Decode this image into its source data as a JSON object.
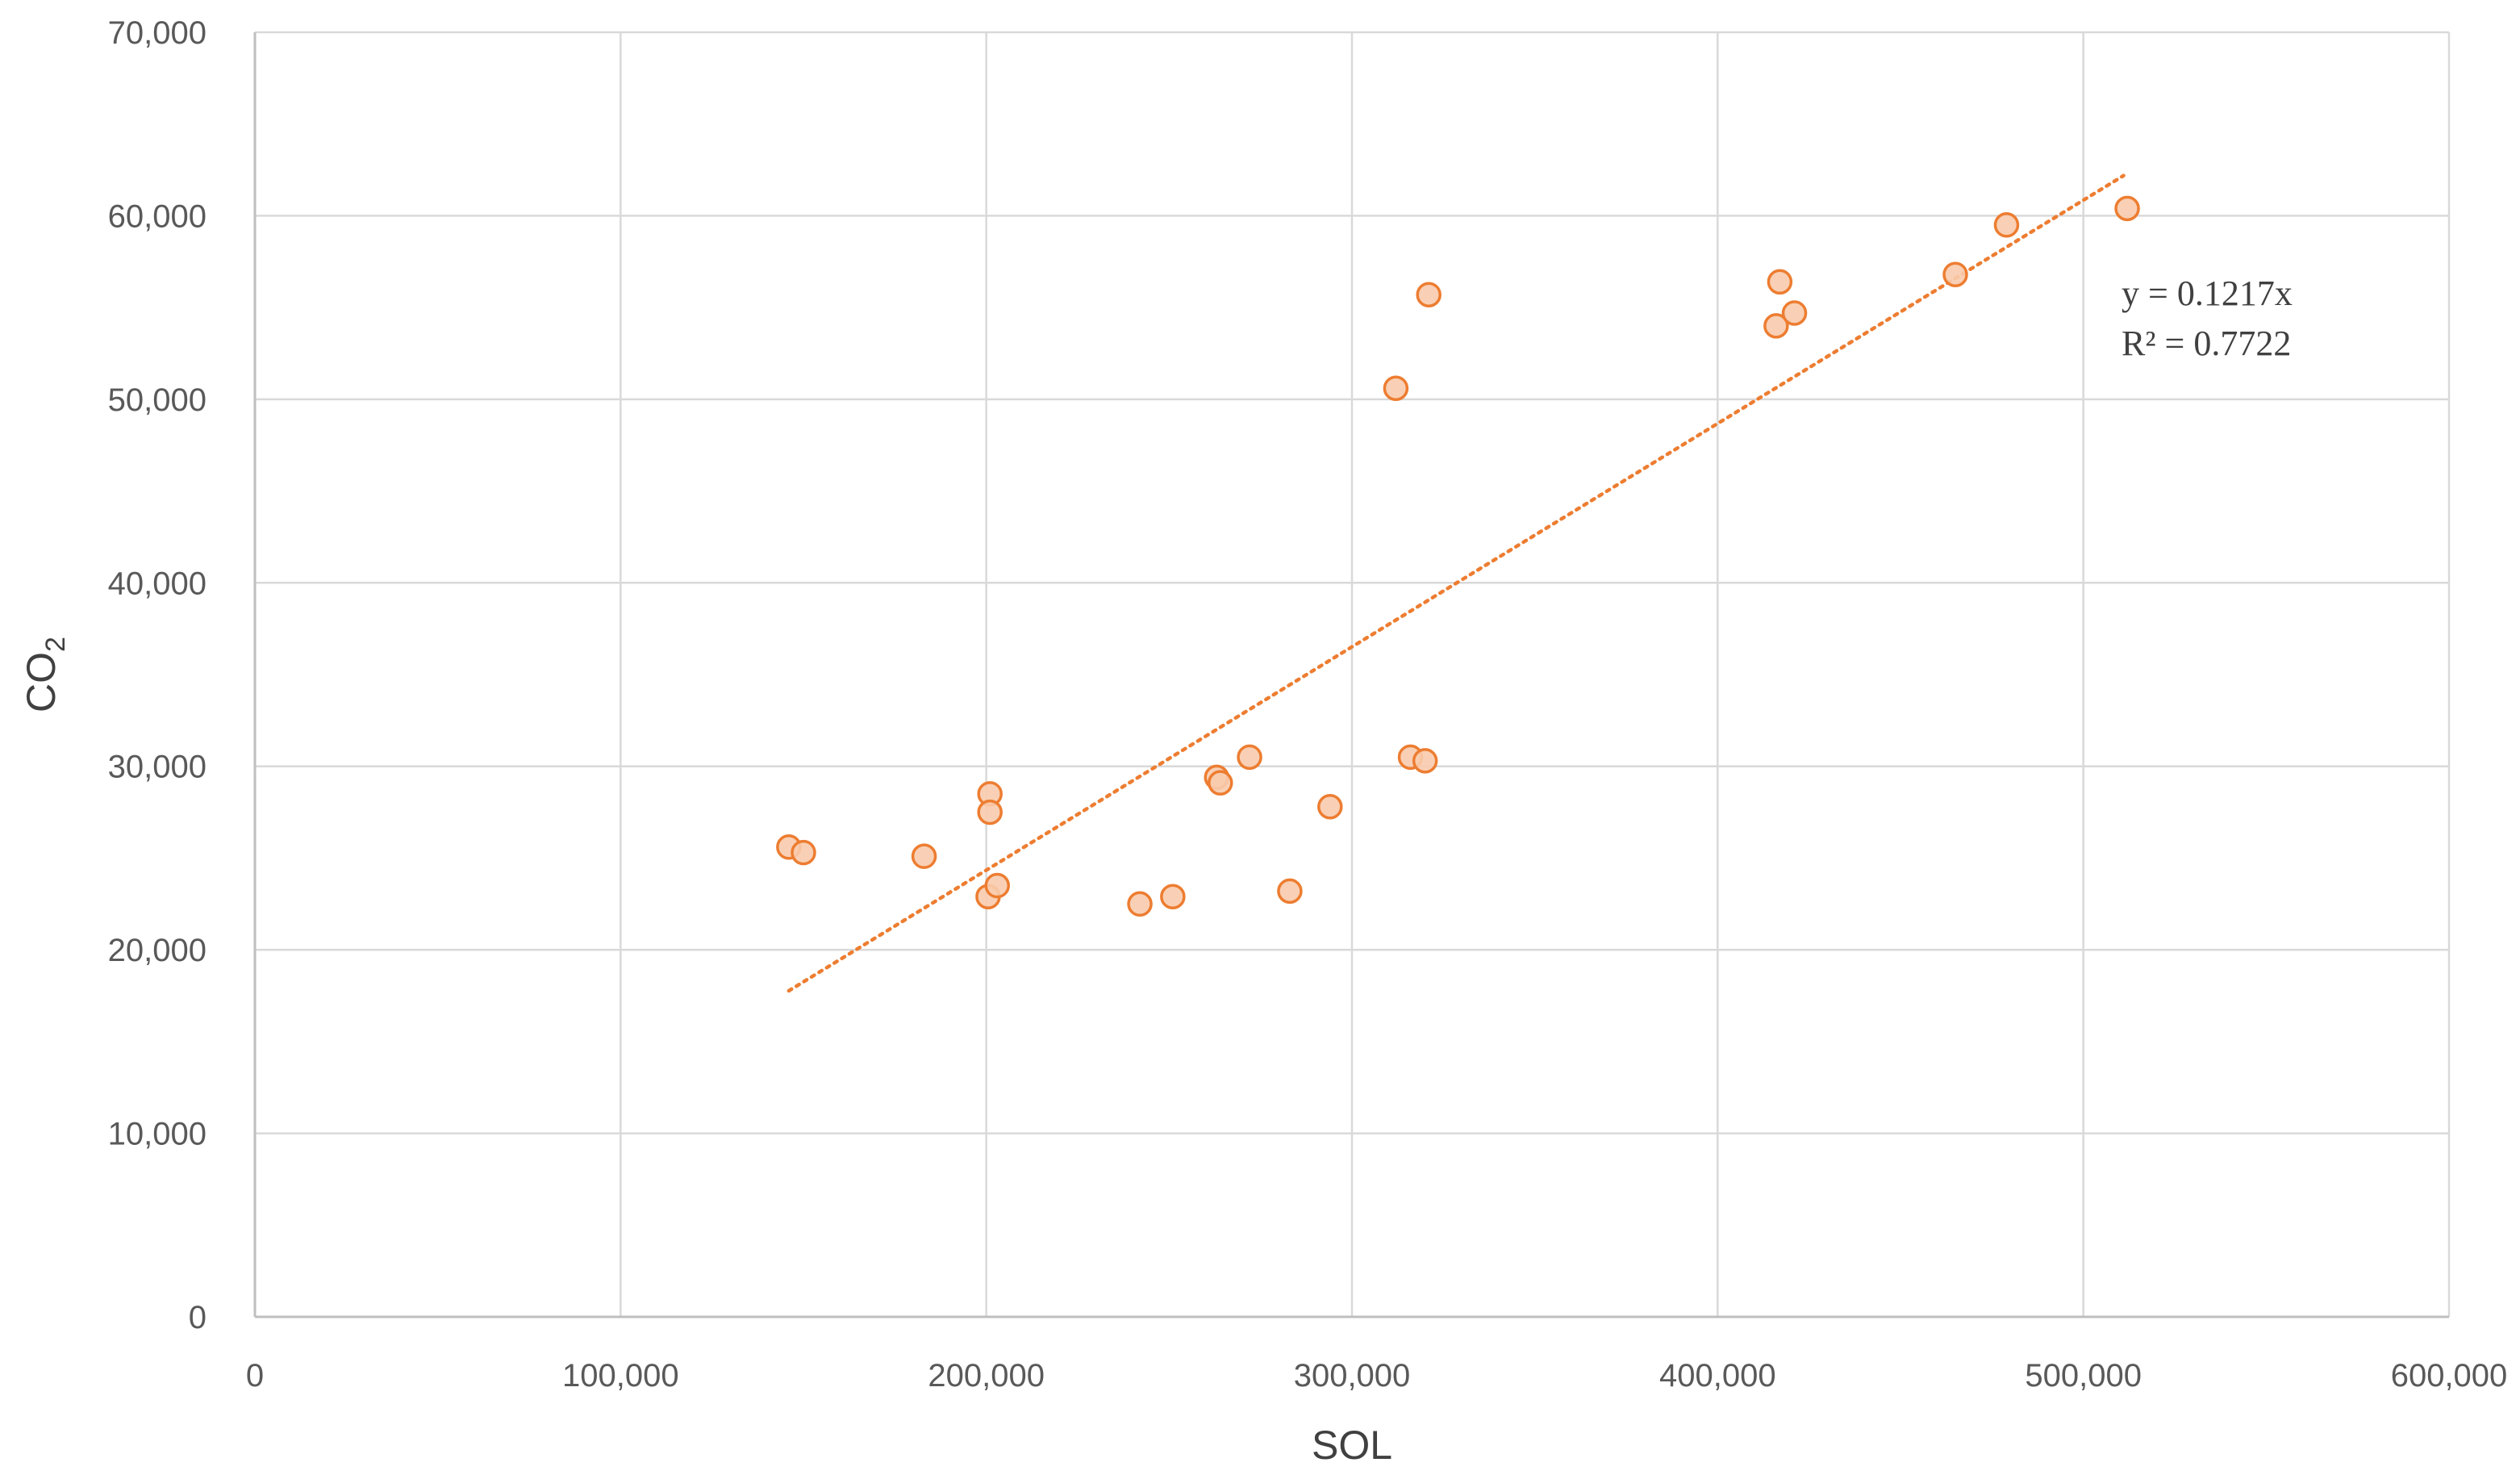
{
  "chart_data": {
    "type": "scatter",
    "title": "",
    "xlabel": "SOL",
    "ylabel_main": "CO",
    "ylabel_sub": "2",
    "xlim": [
      0,
      600000
    ],
    "ylim": [
      0,
      70000
    ],
    "xticks": [
      0,
      100000,
      200000,
      300000,
      400000,
      500000,
      600000
    ],
    "yticks": [
      0,
      10000,
      20000,
      30000,
      40000,
      50000,
      60000,
      70000
    ],
    "xtick_labels": [
      "0",
      "100,000",
      "200,000",
      "300,000",
      "400,000",
      "500,000",
      "600,000"
    ],
    "ytick_labels": [
      "0",
      "10,000",
      "20,000",
      "30,000",
      "40,000",
      "50,000",
      "60,000",
      "70,000"
    ],
    "grid": true,
    "legend": "none",
    "series": [
      {
        "marker_color": "#ed7d31",
        "marker_fill": "#f8cbad",
        "points": [
          {
            "x": 146000,
            "y": 25600
          },
          {
            "x": 150000,
            "y": 25300
          },
          {
            "x": 183000,
            "y": 25100
          },
          {
            "x": 201000,
            "y": 28500
          },
          {
            "x": 201000,
            "y": 27500
          },
          {
            "x": 200500,
            "y": 22900
          },
          {
            "x": 203000,
            "y": 23500
          },
          {
            "x": 242000,
            "y": 22500
          },
          {
            "x": 251000,
            "y": 22900
          },
          {
            "x": 263000,
            "y": 29400
          },
          {
            "x": 264000,
            "y": 29100
          },
          {
            "x": 272000,
            "y": 30500
          },
          {
            "x": 283000,
            "y": 23200
          },
          {
            "x": 294000,
            "y": 27800
          },
          {
            "x": 312000,
            "y": 50600
          },
          {
            "x": 316000,
            "y": 30500
          },
          {
            "x": 320000,
            "y": 30300
          },
          {
            "x": 321000,
            "y": 55700
          },
          {
            "x": 416000,
            "y": 54000
          },
          {
            "x": 417000,
            "y": 56400
          },
          {
            "x": 421000,
            "y": 54700
          },
          {
            "x": 465000,
            "y": 56800
          },
          {
            "x": 479000,
            "y": 59500
          },
          {
            "x": 512000,
            "y": 60400
          }
        ]
      }
    ],
    "trendline": {
      "type": "linear",
      "slope": 0.1217,
      "intercept": 0,
      "x_range": [
        146000,
        511000
      ],
      "color": "#ed7d31",
      "equation": "y = 0.1217x",
      "r_squared": "R² = 0.7722"
    }
  }
}
